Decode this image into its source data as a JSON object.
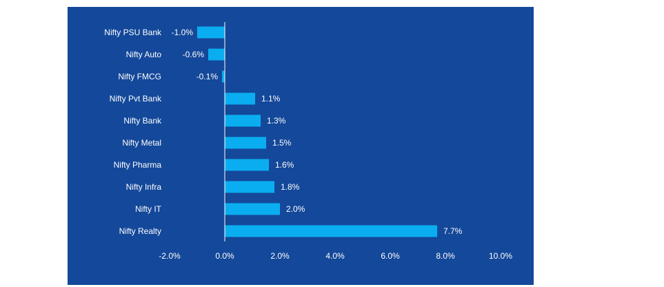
{
  "chart_data": {
    "type": "bar",
    "orientation": "horizontal",
    "categories": [
      "Nifty PSU Bank",
      "Nifty Auto",
      "Nifty FMCG",
      "Nifty Pvt Bank",
      "Nifty Bank",
      "Nifty Metal",
      "Nifty Pharma",
      "Nifty Infra",
      "Nifty IT",
      "Nifty Realty"
    ],
    "values": [
      -1.0,
      -0.6,
      -0.1,
      1.1,
      1.3,
      1.5,
      1.6,
      1.8,
      2.0,
      7.7
    ],
    "value_labels": [
      "-1.0%",
      "-0.6%",
      "-0.1%",
      "1.1%",
      "1.3%",
      "1.5%",
      "1.6%",
      "1.8%",
      "2.0%",
      "7.7%"
    ],
    "xlim": [
      -2.0,
      10.0
    ],
    "x_ticks": [
      -2.0,
      0.0,
      2.0,
      4.0,
      6.0,
      8.0,
      10.0
    ],
    "x_tick_labels": [
      "-2.0%",
      "0.0%",
      "2.0%",
      "4.0%",
      "6.0%",
      "8.0%",
      "10.0%"
    ],
    "title": "",
    "xlabel": "",
    "ylabel": "",
    "grid": false,
    "legend": "none",
    "colors": {
      "background": "#14489a",
      "bar": "#0aaef0",
      "text": "#ffffff",
      "axis": "#ffffff"
    }
  }
}
